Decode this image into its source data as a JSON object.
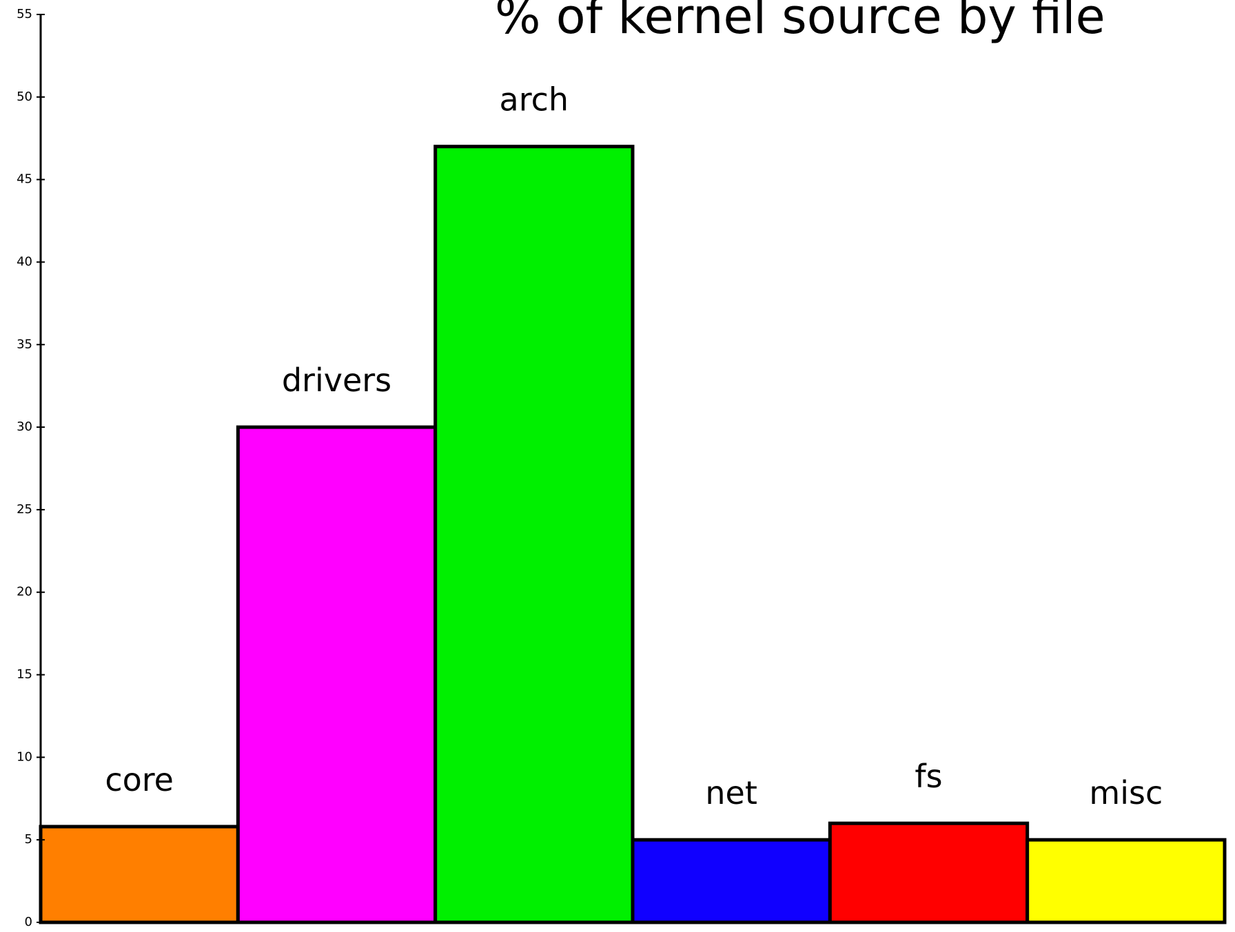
{
  "chart_data": {
    "type": "bar",
    "title": "% of kernel source by file",
    "categories": [
      "core",
      "drivers",
      "arch",
      "net",
      "fs",
      "misc"
    ],
    "values": [
      5.8,
      30,
      47,
      5,
      6,
      5
    ],
    "colors": [
      "#ff7f00",
      "#ff00ff",
      "#00f000",
      "#1000ff",
      "#ff0000",
      "#ffff00"
    ],
    "ylim": [
      0,
      55
    ],
    "yticks": [
      0,
      5,
      10,
      15,
      20,
      25,
      30,
      35,
      40,
      45,
      50,
      55
    ],
    "grid": false
  }
}
